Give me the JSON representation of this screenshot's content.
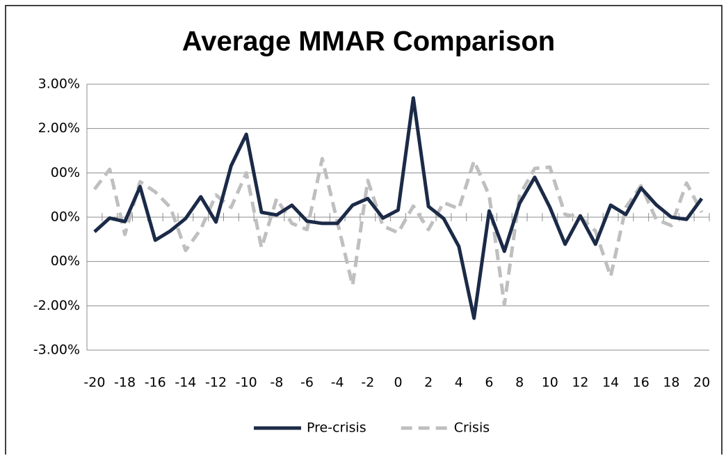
{
  "chart_data": {
    "type": "line",
    "title": "Average MMAR Comparison",
    "categories": [
      "-20",
      null,
      "-18",
      null,
      "-16",
      null,
      "-14",
      null,
      "-12",
      null,
      "-10",
      null,
      "-8",
      null,
      "-6",
      null,
      "-4",
      null,
      "-2",
      null,
      "0",
      null,
      "2",
      null,
      "4",
      null,
      "6",
      null,
      "8",
      null,
      "10",
      null,
      "12",
      null,
      "14",
      null,
      "16",
      null,
      "18",
      null,
      "20"
    ],
    "series": [
      {
        "name": "Pre-crisis",
        "color": "#1b2a47",
        "values": [
          -0.33,
          -0.02,
          -0.1,
          0.69,
          -0.52,
          -0.31,
          -0.03,
          0.46,
          -0.11,
          1.16,
          1.87,
          0.11,
          0.05,
          0.27,
          -0.09,
          -0.14,
          -0.14,
          0.27,
          0.42,
          -0.02,
          0.16,
          2.69,
          0.24,
          -0.03,
          -0.66,
          -2.28,
          0.14,
          -0.77,
          0.31,
          0.9,
          0.22,
          -0.61,
          0.03,
          -0.61,
          0.27,
          0.06,
          0.66,
          0.28,
          0,
          -0.05,
          0.42
        ]
      },
      {
        "name": "Crisis",
        "color": "#bfbfbf",
        "values": [
          0.63,
          1.08,
          -0.39,
          0.8,
          0.57,
          0.22,
          -0.75,
          -0.27,
          0.5,
          0.22,
          1.0,
          -0.69,
          0.42,
          -0.14,
          -0.28,
          1.32,
          -0.11,
          -1.54,
          0.83,
          -0.2,
          -0.35,
          0.25,
          -0.28,
          0.33,
          0.19,
          1.27,
          0.49,
          -1.98,
          0.49,
          1.1,
          1.13,
          0.06,
          0,
          -0.31,
          -1.34,
          0.22,
          0.71,
          -0.05,
          -0.19,
          0.77,
          0.11
        ]
      }
    ],
    "ylim": [
      -3,
      3
    ],
    "yticks": [
      {
        "value": -3,
        "label": "-3.00%"
      },
      {
        "value": -2,
        "label": "-2.00%"
      },
      {
        "value": -1,
        "label": "00%"
      },
      {
        "value": 0,
        "label": "00%"
      },
      {
        "value": 1,
        "label": "00%"
      },
      {
        "value": 2,
        "label": "2.00%"
      },
      {
        "value": 3,
        "label": "3.00%"
      }
    ],
    "grid": true,
    "legend": "bottom"
  }
}
